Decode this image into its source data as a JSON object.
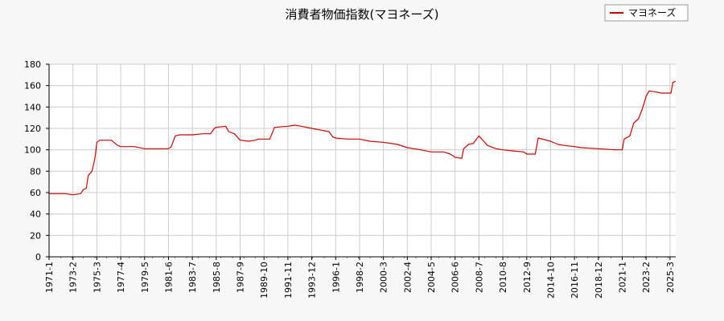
{
  "chart_data": {
    "type": "line",
    "title": "消費者物価指数(マヨネーズ)",
    "xlabel": "",
    "ylabel": "",
    "ylim": [
      0,
      180
    ],
    "y_ticks": [
      0,
      20,
      40,
      60,
      80,
      100,
      120,
      140,
      160,
      180
    ],
    "x_ticks": [
      "1971-1",
      "1973-2",
      "1975-3",
      "1977-4",
      "1979-5",
      "1981-6",
      "1983-7",
      "1985-8",
      "1987-9",
      "1989-10",
      "1991-11",
      "1993-12",
      "1996-1",
      "1998-2",
      "2000-3",
      "2002-4",
      "2004-5",
      "2006-6",
      "2008-7",
      "2010-8",
      "2012-9",
      "2014-10",
      "2016-11",
      "2018-12",
      "2021-1",
      "2023-2",
      "2025-3"
    ],
    "grid": true,
    "legend_position": "top-right",
    "colors": {
      "series": "#cc0000",
      "grid": "#cccccc",
      "plot_bg": "#ffffff",
      "page_bg": "#f7f7f7"
    },
    "series": [
      {
        "name": "マヨネーズ",
        "points": [
          [
            "1971-1",
            59
          ],
          [
            "1972-6",
            59
          ],
          [
            "1973-2",
            58
          ],
          [
            "1973-10",
            59
          ],
          [
            "1974-1",
            63
          ],
          [
            "1974-4",
            64
          ],
          [
            "1974-6",
            76
          ],
          [
            "1974-10",
            80
          ],
          [
            "1975-1",
            92
          ],
          [
            "1975-3",
            107
          ],
          [
            "1975-6",
            109
          ],
          [
            "1976-6",
            109
          ],
          [
            "1977-1",
            104
          ],
          [
            "1977-4",
            103
          ],
          [
            "1978-6",
            103
          ],
          [
            "1979-5",
            101
          ],
          [
            "1980-6",
            101
          ],
          [
            "1981-6",
            101
          ],
          [
            "1981-9",
            103
          ],
          [
            "1982-1",
            113
          ],
          [
            "1982-6",
            114
          ],
          [
            "1983-7",
            114
          ],
          [
            "1984-6",
            115
          ],
          [
            "1985-2",
            115
          ],
          [
            "1985-6",
            120
          ],
          [
            "1985-8",
            121
          ],
          [
            "1986-6",
            122
          ],
          [
            "1986-9",
            117
          ],
          [
            "1987-3",
            115
          ],
          [
            "1987-9",
            109
          ],
          [
            "1988-6",
            108
          ],
          [
            "1989-1",
            109
          ],
          [
            "1989-4",
            110
          ],
          [
            "1989-10",
            110
          ],
          [
            "1990-4",
            110
          ],
          [
            "1990-9",
            121
          ],
          [
            "1991-11",
            122
          ],
          [
            "1992-6",
            123
          ],
          [
            "1993-1",
            122
          ],
          [
            "1993-12",
            120
          ],
          [
            "1994-6",
            119
          ],
          [
            "1995-6",
            117
          ],
          [
            "1995-10",
            112
          ],
          [
            "1996-1",
            111
          ],
          [
            "1997-1",
            110
          ],
          [
            "1998-2",
            110
          ],
          [
            "1999-1",
            108
          ],
          [
            "2000-3",
            107
          ],
          [
            "2001-6",
            105
          ],
          [
            "2002-4",
            102
          ],
          [
            "2003-6",
            100
          ],
          [
            "2004-5",
            98
          ],
          [
            "2005-6",
            98
          ],
          [
            "2006-1",
            96
          ],
          [
            "2006-6",
            93
          ],
          [
            "2007-1",
            92
          ],
          [
            "2007-3",
            101
          ],
          [
            "2007-8",
            105
          ],
          [
            "2008-1",
            106
          ],
          [
            "2008-7",
            113
          ],
          [
            "2008-12",
            108
          ],
          [
            "2009-4",
            104
          ],
          [
            "2010-1",
            101
          ],
          [
            "2010-8",
            100
          ],
          [
            "2011-6",
            99
          ],
          [
            "2012-6",
            98
          ],
          [
            "2012-9",
            96
          ],
          [
            "2013-6",
            96
          ],
          [
            "2013-9",
            111
          ],
          [
            "2014-10",
            108
          ],
          [
            "2015-6",
            105
          ],
          [
            "2016-1",
            104
          ],
          [
            "2016-11",
            103
          ],
          [
            "2017-6",
            102
          ],
          [
            "2018-12",
            101
          ],
          [
            "2020-6",
            100
          ],
          [
            "2021-1",
            100
          ],
          [
            "2021-3",
            110
          ],
          [
            "2021-9",
            113
          ],
          [
            "2022-1",
            125
          ],
          [
            "2022-6",
            129
          ],
          [
            "2022-10",
            138
          ],
          [
            "2023-2",
            150
          ],
          [
            "2023-5",
            155
          ],
          [
            "2024-1",
            154
          ],
          [
            "2024-6",
            153
          ],
          [
            "2025-1",
            153
          ],
          [
            "2025-4",
            153
          ],
          [
            "2025-6",
            163
          ],
          [
            "2025-9",
            164
          ]
        ]
      }
    ]
  }
}
